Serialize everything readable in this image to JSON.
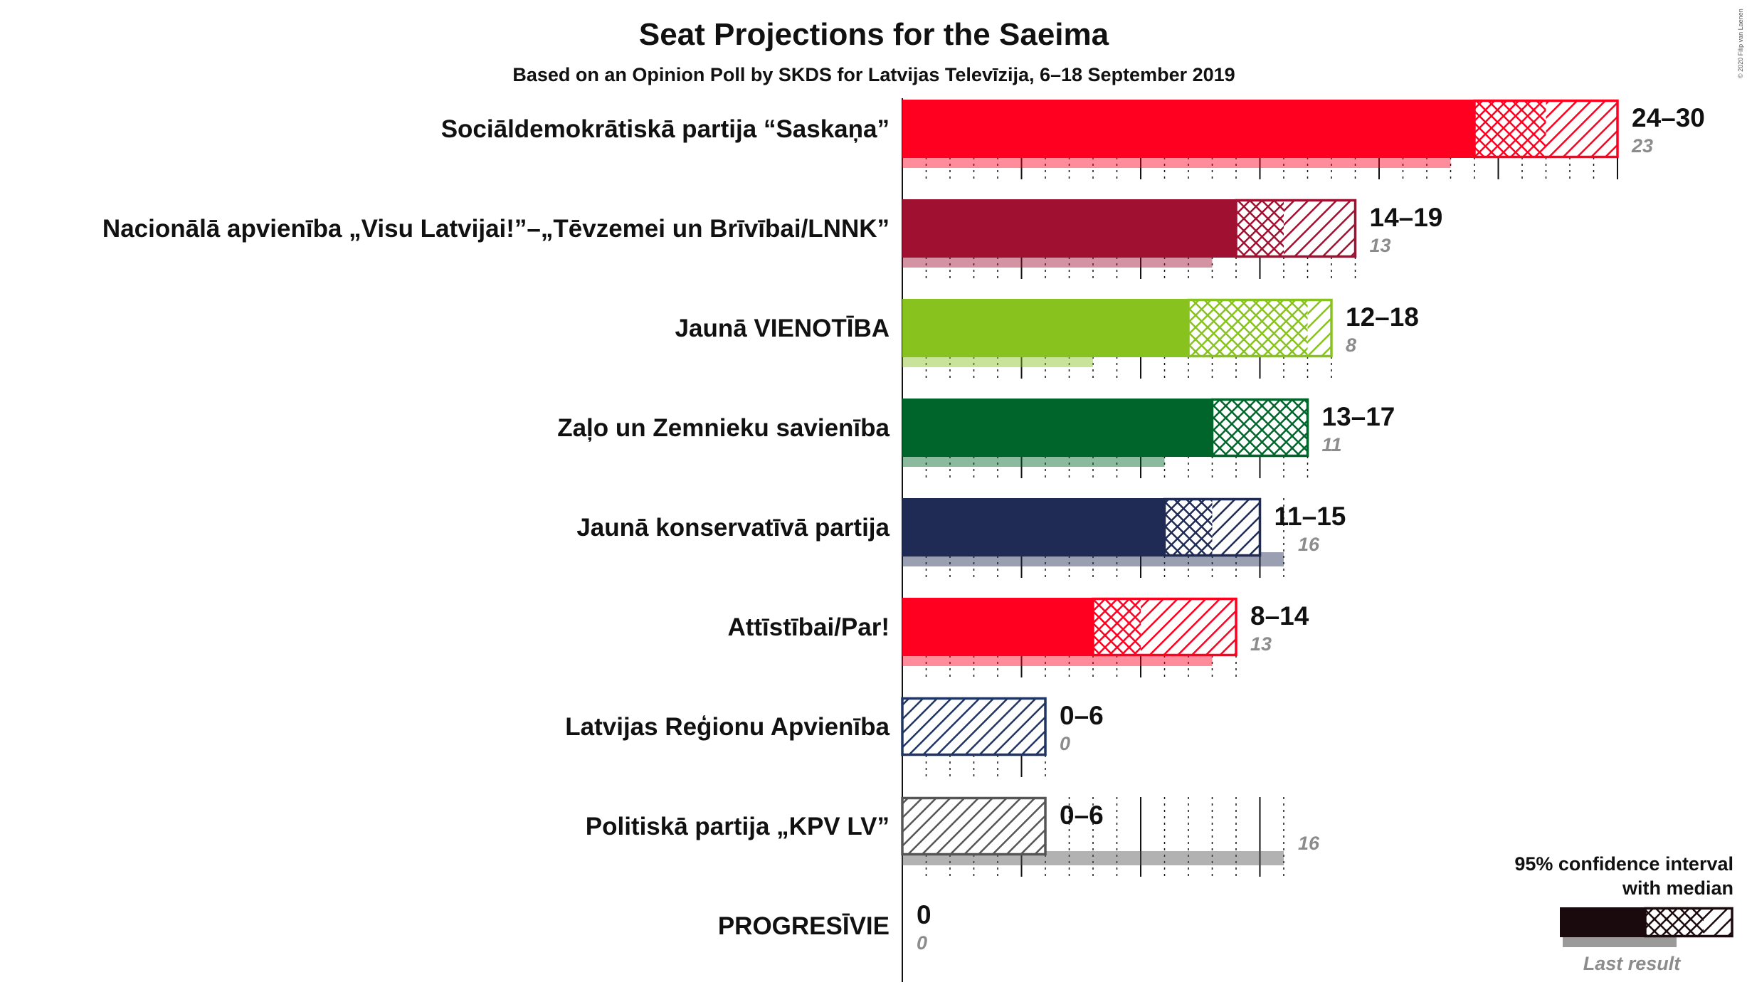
{
  "title": "Seat Projections for the Saeima",
  "subtitle": "Based on an Opinion Poll by SKDS for Latvijas Televīzija, 6–18 September 2019",
  "copyright": "© 2020 Filip van Laenen",
  "legend": {
    "title_line1": "95% confidence interval",
    "title_line2": "with median",
    "last_result": "Last result",
    "color": "#1a0a0e"
  },
  "chart_data": {
    "type": "bar",
    "orientation": "horizontal",
    "xlim": [
      0,
      30
    ],
    "series": [
      {
        "party": "Sociāldemokrātiskā partija “Saskaņa”",
        "low": 24,
        "median": 27,
        "high": 30,
        "range_label": "24–30",
        "last_result": 23,
        "last_label": "23",
        "color": "#ff0020"
      },
      {
        "party": "Nacionālā apvienība „Visu Latvijai!”–„Tēvzemei un Brīvībai/LNNK”",
        "low": 14,
        "median": 16,
        "high": 19,
        "range_label": "14–19",
        "last_result": 13,
        "last_label": "13",
        "color": "#a01030"
      },
      {
        "party": "Jaunā VIENOTĪBA",
        "low": 12,
        "median": 17,
        "high": 18,
        "range_label": "12–18",
        "last_result": 8,
        "last_label": "8",
        "color": "#88c21e"
      },
      {
        "party": "Zaļo un Zemnieku savienība",
        "low": 13,
        "median": 17,
        "high": 17,
        "range_label": "13–17",
        "last_result": 11,
        "last_label": "11",
        "color": "#00652b"
      },
      {
        "party": "Jaunā konservatīvā partija",
        "low": 11,
        "median": 13,
        "high": 15,
        "range_label": "11–15",
        "last_result": 16,
        "last_label": "16",
        "color": "#1f2a55"
      },
      {
        "party": "Attīstībai/Par!",
        "low": 8,
        "median": 10,
        "high": 14,
        "range_label": "8–14",
        "last_result": 13,
        "last_label": "13",
        "color": "#ff0020"
      },
      {
        "party": "Latvijas Reģionu Apvienība",
        "low": 0,
        "median": 0,
        "high": 6,
        "range_label": "0–6",
        "last_result": 0,
        "last_label": "0",
        "color": "#1f3563"
      },
      {
        "party": "Politiskā partija „KPV LV”",
        "low": 0,
        "median": 0,
        "high": 6,
        "range_label": "0–6",
        "last_result": 16,
        "last_label": "16",
        "color": "#555555"
      },
      {
        "party": "PROGRESĪVIE",
        "low": 0,
        "median": 0,
        "high": 0,
        "range_label": "0",
        "last_result": 0,
        "last_label": "0",
        "color": "#cccccc"
      }
    ]
  }
}
